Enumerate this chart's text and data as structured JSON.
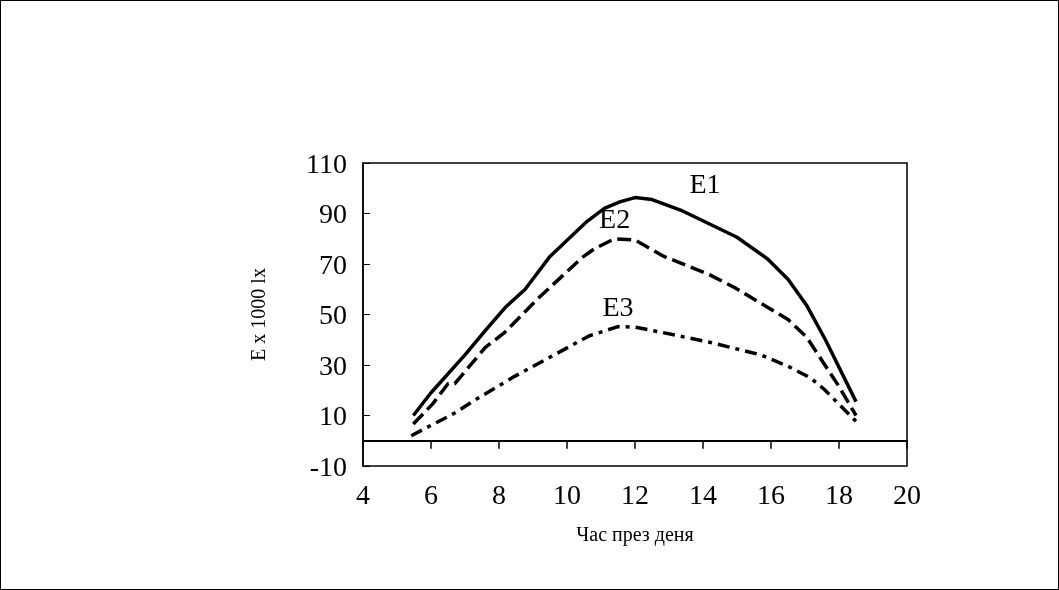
{
  "chart_data": {
    "type": "line",
    "xlabel": "Час през деня",
    "ylabel": "E x 1000 lx",
    "xlim": [
      4,
      20
    ],
    "xticks": [
      4,
      6,
      8,
      10,
      12,
      14,
      16,
      18,
      20
    ],
    "ylim": [
      -10,
      110
    ],
    "yticks": [
      -10,
      10,
      30,
      50,
      70,
      90,
      110
    ],
    "grid": false,
    "marker": "none",
    "series": [
      {
        "name": "E1",
        "color": "#000000",
        "line_style": "solid",
        "x": [
          5.48,
          6,
          7,
          7.62,
          8.2,
          8.77,
          9.5,
          10.6,
          11.1,
          11.55,
          12,
          12.5,
          13.4,
          15,
          15.9,
          16.5,
          17.05,
          17.6,
          18.5
        ],
        "values": [
          10,
          19,
          34,
          44,
          53,
          60,
          73,
          87,
          92,
          94.6,
          96.3,
          95.5,
          91,
          80.6,
          72,
          64,
          53.6,
          40,
          15.5
        ]
      },
      {
        "name": "E2",
        "color": "#000000",
        "line_style": "dashed",
        "x": [
          5.48,
          6.05,
          6.5,
          6.7,
          7.6,
          8.15,
          9.2,
          10.45,
          10.8,
          11.4,
          12,
          12.85,
          14.2,
          14.95,
          16.5,
          17.05,
          18,
          18.5
        ],
        "values": [
          6.6,
          14.6,
          22.6,
          22.6,
          37,
          42.7,
          57,
          72.6,
          76,
          80,
          79.5,
          73,
          65.7,
          60.5,
          48,
          41,
          21.5,
          10
        ]
      },
      {
        "name": "E3",
        "color": "#000000",
        "line_style": "dotted",
        "x": [
          5.42,
          6.7,
          7.4,
          8.46,
          10.1,
          10.66,
          11.5,
          12,
          12.65,
          14.2,
          15.7,
          16.5,
          17.15,
          17.57,
          18.5
        ],
        "values": [
          2,
          11,
          17,
          25.5,
          37.5,
          41.6,
          45.2,
          45,
          43.3,
          39,
          34,
          29.5,
          25,
          20.3,
          7.7
        ]
      }
    ]
  }
}
